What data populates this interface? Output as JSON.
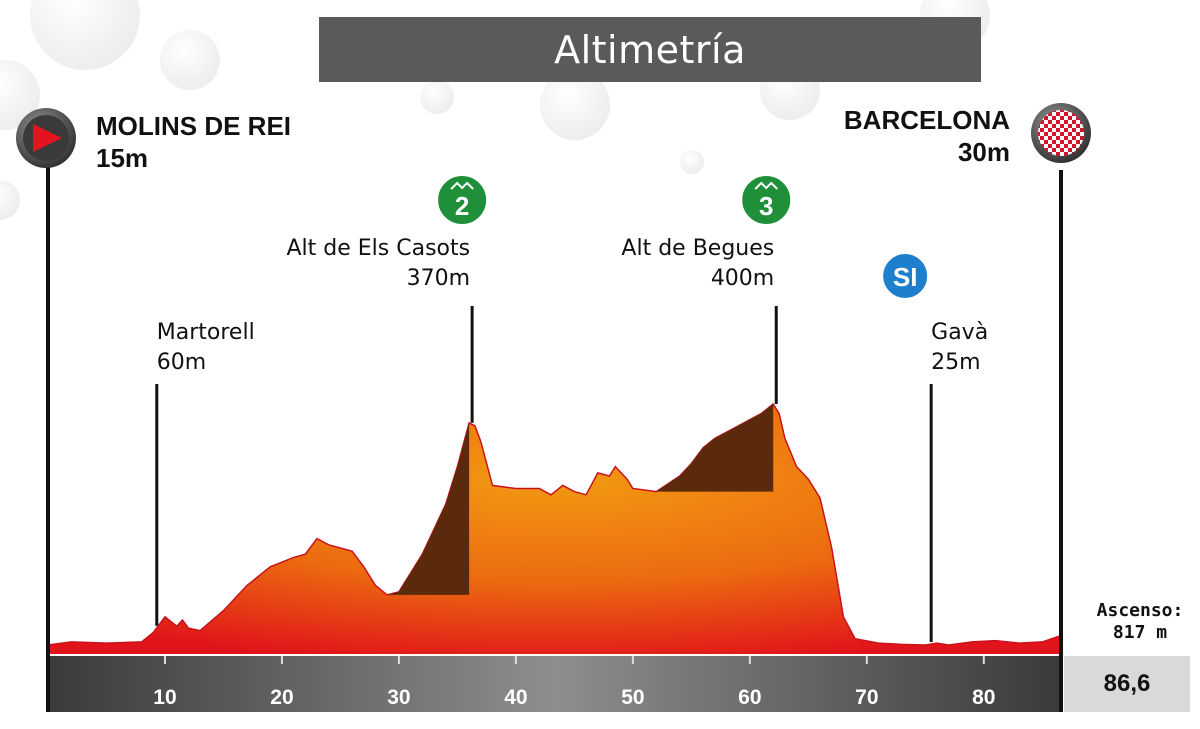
{
  "title": "Altimetría",
  "start": {
    "name": "MOLINS DE REI",
    "elevation": "15m",
    "icon": "start-flag-icon"
  },
  "finish": {
    "name": "BARCELONA",
    "elevation": "30m",
    "icon": "checkered-flag-icon"
  },
  "summary": {
    "ascenso_label": "Ascenso:",
    "ascenso_value": "817 m",
    "total_distance": "86,6"
  },
  "colors": {
    "profile_top": "#f29a12",
    "profile_bottom": "#e0141a",
    "climb_shade": "#5b2a0c",
    "km_bar": "#555555",
    "km_marker": "#1f8f3a",
    "sprint_marker": "#1f7fcf"
  },
  "chart_data": {
    "type": "area",
    "xlabel": "",
    "ylabel": "",
    "xlim": [
      0,
      86.6
    ],
    "ylim": [
      0,
      420
    ],
    "x_ticks": [
      10,
      20,
      30,
      40,
      50,
      60,
      70,
      80
    ],
    "profile": [
      [
        0,
        15
      ],
      [
        2,
        20
      ],
      [
        5,
        18
      ],
      [
        8,
        20
      ],
      [
        9,
        35
      ],
      [
        10,
        60
      ],
      [
        11,
        45
      ],
      [
        11.5,
        55
      ],
      [
        12,
        42
      ],
      [
        13,
        38
      ],
      [
        15,
        70
      ],
      [
        17,
        110
      ],
      [
        19,
        140
      ],
      [
        21,
        155
      ],
      [
        22,
        160
      ],
      [
        23,
        185
      ],
      [
        24,
        175
      ],
      [
        26,
        165
      ],
      [
        27,
        140
      ],
      [
        28,
        110
      ],
      [
        29,
        95
      ],
      [
        30,
        100
      ],
      [
        31,
        130
      ],
      [
        32,
        160
      ],
      [
        34,
        240
      ],
      [
        35,
        300
      ],
      [
        36,
        370
      ],
      [
        36.5,
        365
      ],
      [
        37,
        340
      ],
      [
        38,
        270
      ],
      [
        40,
        265
      ],
      [
        42,
        265
      ],
      [
        43,
        255
      ],
      [
        44,
        270
      ],
      [
        45,
        260
      ],
      [
        46,
        255
      ],
      [
        47,
        290
      ],
      [
        48,
        285
      ],
      [
        48.5,
        300
      ],
      [
        49,
        290
      ],
      [
        49.5,
        280
      ],
      [
        50,
        265
      ],
      [
        52,
        260
      ],
      [
        54,
        285
      ],
      [
        55,
        305
      ],
      [
        56,
        330
      ],
      [
        57,
        345
      ],
      [
        58,
        355
      ],
      [
        59,
        365
      ],
      [
        60,
        375
      ],
      [
        61,
        385
      ],
      [
        62,
        400
      ],
      [
        62.5,
        385
      ],
      [
        63,
        345
      ],
      [
        64,
        300
      ],
      [
        65,
        280
      ],
      [
        66,
        250
      ],
      [
        67,
        170
      ],
      [
        68,
        60
      ],
      [
        69,
        25
      ],
      [
        71,
        18
      ],
      [
        73,
        16
      ],
      [
        75,
        15
      ],
      [
        76,
        18
      ],
      [
        77,
        15
      ],
      [
        79,
        20
      ],
      [
        81,
        22
      ],
      [
        83,
        18
      ],
      [
        85,
        20
      ],
      [
        86.6,
        30
      ]
    ],
    "climbs": [
      {
        "category": "2",
        "name": "Alt de Els Casots",
        "elevation": "370m",
        "km": 36
      },
      {
        "category": "3",
        "name": "Alt de Begues",
        "elevation": "400m",
        "km": 62
      }
    ],
    "points": [
      {
        "name": "Martorell",
        "elevation": "60m",
        "km": 9.3
      },
      {
        "name": "Gavà",
        "elevation": "25m",
        "km": 75.5,
        "badge": "SI"
      }
    ]
  }
}
